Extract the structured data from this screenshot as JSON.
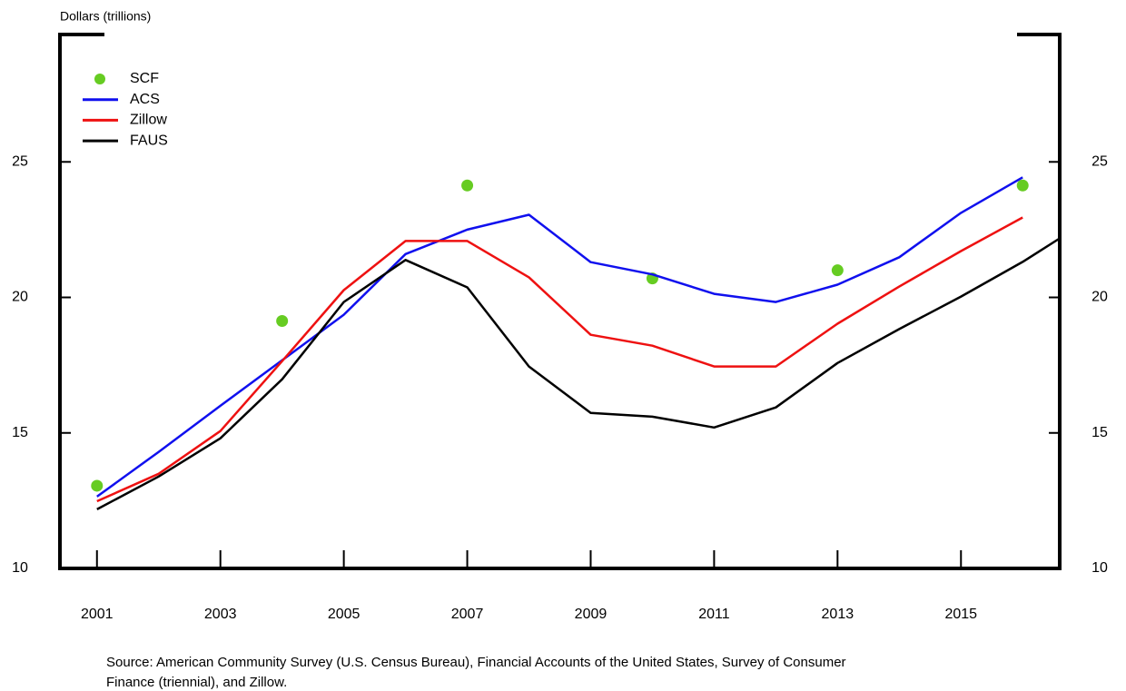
{
  "chart_data": {
    "type": "line",
    "y_axis_label": "Dollars (trillions)",
    "xlim": [
      2000.4,
      2016.6
    ],
    "xticks": [
      2001,
      2003,
      2005,
      2007,
      2009,
      2011,
      2013,
      2015
    ],
    "ylim": [
      10,
      29.7
    ],
    "yticks": [
      10,
      15,
      20,
      25
    ],
    "series": [
      {
        "name": "SCF",
        "color": "#66cc22",
        "style": "dots",
        "x": [
          2001,
          2004,
          2007,
          2010,
          2013,
          2016
        ],
        "values": [
          13.05,
          19.13,
          24.13,
          20.7,
          21.0,
          24.13
        ]
      },
      {
        "name": "ACS",
        "color": "#1010ee",
        "style": "line",
        "x": [
          2001,
          2002,
          2003,
          2004,
          2005,
          2006,
          2007,
          2008,
          2009,
          2010,
          2011,
          2012,
          2013,
          2014,
          2015,
          2016
        ],
        "values": [
          12.65,
          14.3,
          16.0,
          17.68,
          19.36,
          21.6,
          22.5,
          23.05,
          21.3,
          20.85,
          20.13,
          19.83,
          20.47,
          21.48,
          23.12,
          24.43
        ]
      },
      {
        "name": "Zillow",
        "color": "#ee1111",
        "style": "line",
        "x": [
          2001,
          2002,
          2003,
          2004,
          2005,
          2006,
          2007,
          2008,
          2009,
          2010,
          2011,
          2012,
          2013,
          2014,
          2015,
          2016
        ],
        "values": [
          12.48,
          13.49,
          15.07,
          17.65,
          20.27,
          22.08,
          22.08,
          20.74,
          18.62,
          18.22,
          17.45,
          17.45,
          19.03,
          20.4,
          21.71,
          22.95
        ]
      },
      {
        "name": "FAUS",
        "color": "#000000",
        "style": "line",
        "x": [
          2001,
          2002,
          2003,
          2004,
          2005,
          2006,
          2007,
          2008,
          2009,
          2010,
          2011,
          2012,
          2013,
          2014,
          2015,
          2016,
          2016.6
        ],
        "values": [
          12.18,
          13.39,
          14.8,
          16.98,
          19.83,
          21.38,
          20.37,
          17.45,
          15.74,
          15.6,
          15.2,
          15.94,
          17.58,
          18.83,
          20.03,
          21.31,
          22.18
        ]
      }
    ],
    "source": [
      "Source: American Community Survey (U.S. Census Bureau), Financial Accounts of the United States, Survey of Consumer",
      "Finance (triennial), and Zillow."
    ]
  }
}
